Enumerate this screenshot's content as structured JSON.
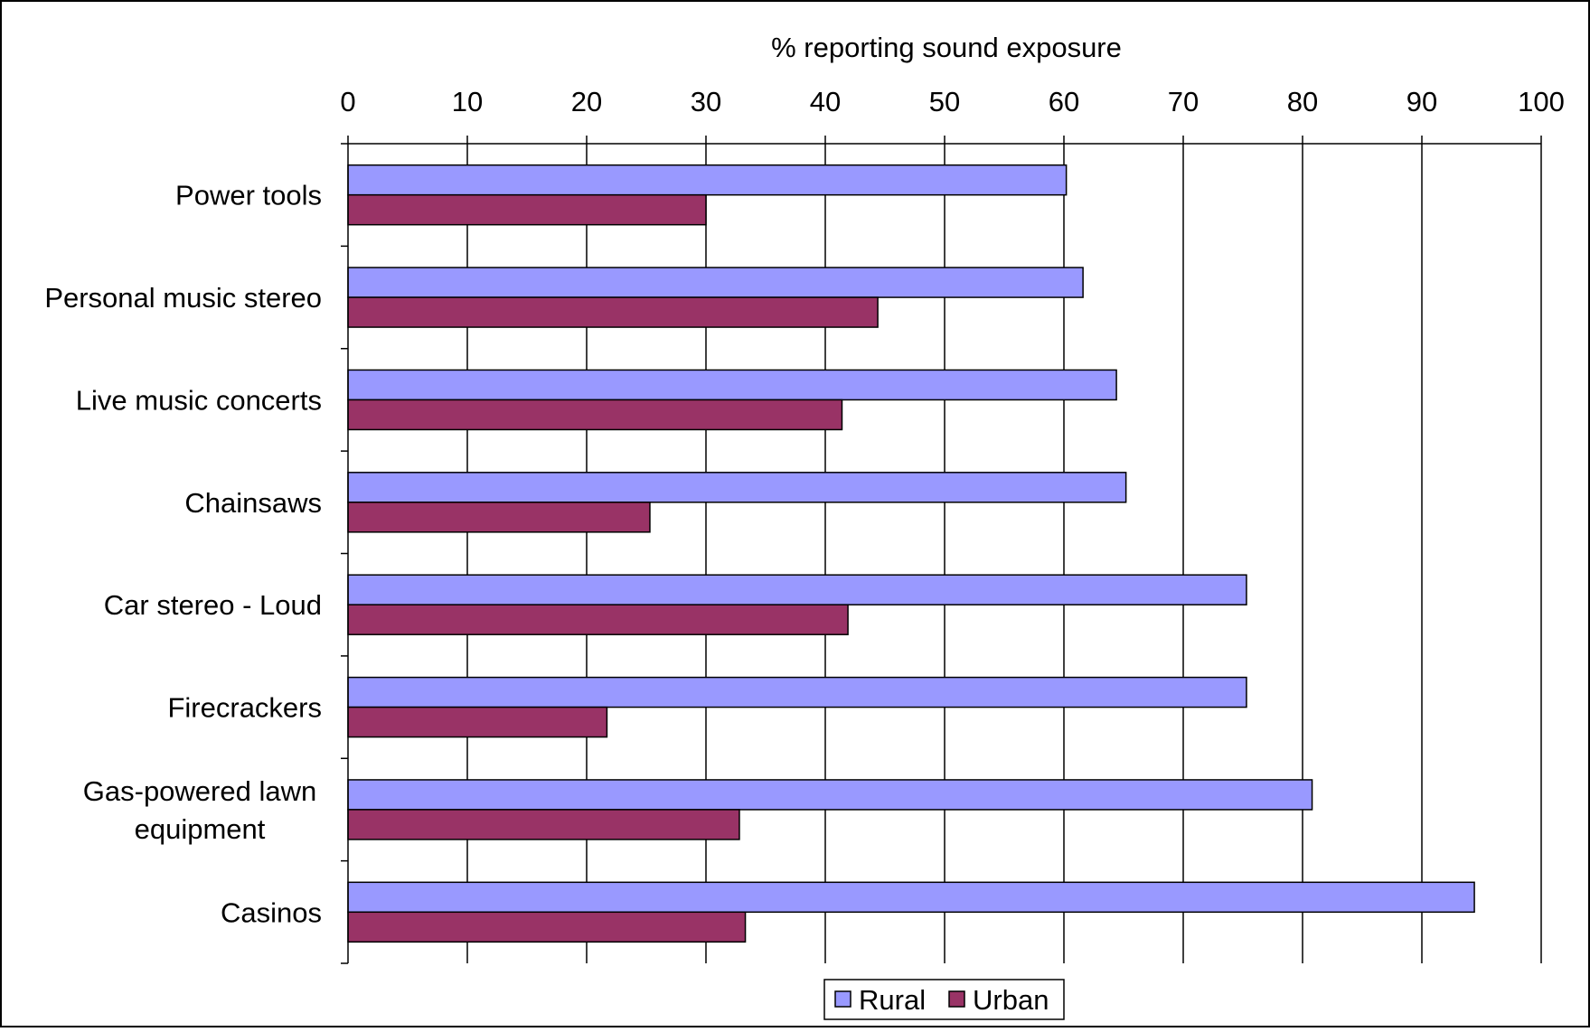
{
  "chart_data": {
    "type": "bar",
    "orientation": "horizontal",
    "title": "",
    "xlabel": "% reporting sound exposure",
    "ylabel": "",
    "xlim": [
      0,
      100
    ],
    "x_ticks": [
      0,
      10,
      20,
      30,
      40,
      50,
      60,
      70,
      80,
      90,
      100
    ],
    "x_axis_position": "top",
    "grid": "vertical gridlines",
    "legend_position": "bottom",
    "categories": [
      [
        "Power tools"
      ],
      [
        "Personal music stereo"
      ],
      [
        "Live music concerts"
      ],
      [
        "Chainsaws"
      ],
      [
        "Car stereo - Loud"
      ],
      [
        "Firecrackers"
      ],
      [
        "Gas-powered lawn",
        "equipment"
      ],
      [
        "Casinos"
      ]
    ],
    "series": [
      {
        "name": "Rural",
        "color": "#9999ff",
        "values": [
          60.2,
          61.6,
          64.4,
          65.2,
          75.3,
          75.3,
          80.8,
          94.4
        ]
      },
      {
        "name": "Urban",
        "color": "#993366",
        "values": [
          30.0,
          44.4,
          41.4,
          25.3,
          41.9,
          21.7,
          32.8,
          33.3
        ]
      }
    ]
  }
}
